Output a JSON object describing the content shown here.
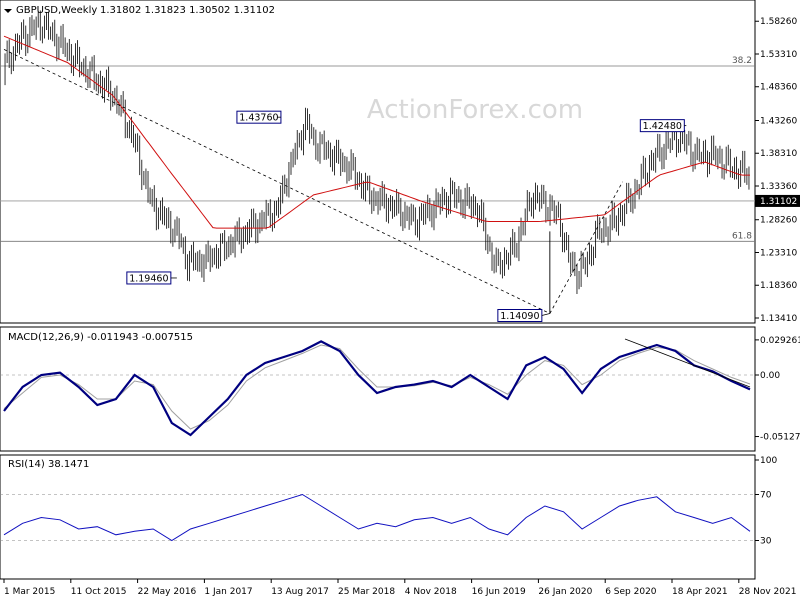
{
  "header": {
    "symbol": "GBPUSD,Weekly",
    "ohlc": "1.31802 1.31823 1.30502 1.31102"
  },
  "watermark": "ActionForex.com",
  "colors": {
    "candle": "#000000",
    "ma": "#d01010",
    "macd": "#000080",
    "signal": "#a0a0a0",
    "rsi": "#1010c0",
    "grid": "#888888",
    "watermark": "#d8d8d8"
  },
  "chart_data": [
    {
      "type": "candlestick",
      "title": "GBPUSD,Weekly 1.31802 1.31823 1.30502 1.31102",
      "y_ticks": [
        "1.58260",
        "1.53310",
        "1.48360",
        "1.43260",
        "1.38310",
        "1.33360",
        "1.28260",
        "1.23310",
        "1.18360",
        "1.13410"
      ],
      "y_tick_values": [
        1.5826,
        1.5331,
        1.4836,
        1.4326,
        1.3831,
        1.3336,
        1.2826,
        1.2331,
        1.1836,
        1.1341
      ],
      "ylim": [
        1.1341,
        1.6026
      ],
      "x_tick_labels": [
        "1 Mar 2015",
        "11 Oct 2015",
        "22 May 2016",
        "1 Jan 2017",
        "13 Aug 2017",
        "25 Mar 2018",
        "4 Nov 2018",
        "16 Jun 2019",
        "26 Jan 2020",
        "6 Sep 2020",
        "18 Apr 2021",
        "28 Nov 2021"
      ],
      "last_price": "1.31102",
      "annotations": [
        {
          "label": "1.43760",
          "x": "Sep 2017",
          "y": 1.4376
        },
        {
          "label": "1.19460",
          "x": "Oct 2016",
          "y": 1.1946
        },
        {
          "label": "1.14090",
          "x": "Mar 2020",
          "y": 1.1409
        },
        {
          "label": "1.42480",
          "x": "Jun 2021",
          "y": 1.4248
        }
      ],
      "fibonacci": [
        {
          "label": "38.2",
          "y": 1.515
        },
        {
          "label": "61.8",
          "y": 1.25
        }
      ],
      "trendlines": [
        {
          "style": "dashed",
          "from": {
            "x": "Mar 2015",
            "y": 1.54
          },
          "to": {
            "x": "Mar 2020",
            "y": 1.1409
          }
        },
        {
          "style": "dashed",
          "from": {
            "x": "Mar 2020",
            "y": 1.1409
          },
          "to": {
            "x": "Nov 2020",
            "y": 1.34
          }
        }
      ],
      "ma_series": [
        {
          "x": "Mar 2015",
          "y": 1.56
        },
        {
          "x": "Oct 2015",
          "y": 1.52
        },
        {
          "x": "Mar 2016",
          "y": 1.47
        },
        {
          "x": "Sep 2016",
          "y": 1.36
        },
        {
          "x": "Feb 2017",
          "y": 1.27
        },
        {
          "x": "Aug 2017",
          "y": 1.27
        },
        {
          "x": "Jan 2018",
          "y": 1.32
        },
        {
          "x": "Jul 2018",
          "y": 1.34
        },
        {
          "x": "Jan 2019",
          "y": 1.31
        },
        {
          "x": "Aug 2019",
          "y": 1.28
        },
        {
          "x": "Feb 2020",
          "y": 1.28
        },
        {
          "x": "Sep 2020",
          "y": 1.29
        },
        {
          "x": "Mar 2021",
          "y": 1.35
        },
        {
          "x": "Aug 2021",
          "y": 1.37
        },
        {
          "x": "Dec 2021",
          "y": 1.35
        }
      ]
    },
    {
      "type": "line",
      "title": "MACD(12,26,9) -0.011943 -0.007515",
      "y_ticks": [
        "0.029261",
        "0.00",
        "-0.051279"
      ],
      "y_tick_values": [
        0.029261,
        0.0,
        -0.051279
      ],
      "ylim": [
        -0.06,
        0.035
      ],
      "series": [
        {
          "name": "MACD",
          "values": [
            -0.03,
            -0.01,
            0.0,
            0.002,
            -0.01,
            -0.025,
            -0.02,
            0.0,
            -0.01,
            -0.04,
            -0.05,
            -0.035,
            -0.02,
            0.0,
            0.01,
            0.015,
            0.02,
            0.028,
            0.02,
            0.0,
            -0.015,
            -0.01,
            -0.008,
            -0.005,
            -0.01,
            0.0,
            -0.01,
            -0.02,
            0.008,
            0.015,
            0.005,
            -0.015,
            0.005,
            0.015,
            0.02,
            0.025,
            0.02,
            0.008,
            0.003,
            -0.005,
            -0.012
          ]
        },
        {
          "name": "Signal",
          "values": [
            -0.028,
            -0.015,
            -0.002,
            0.0,
            -0.008,
            -0.02,
            -0.02,
            -0.005,
            -0.008,
            -0.03,
            -0.045,
            -0.038,
            -0.025,
            -0.005,
            0.006,
            0.012,
            0.018,
            0.025,
            0.022,
            0.005,
            -0.01,
            -0.01,
            -0.009,
            -0.006,
            -0.009,
            -0.002,
            -0.008,
            -0.016,
            0.0,
            0.012,
            0.008,
            -0.008,
            0.0,
            0.012,
            0.018,
            0.023,
            0.021,
            0.012,
            0.005,
            -0.002,
            -0.0075
          ]
        }
      ]
    },
    {
      "type": "line",
      "title": "RSI(14) 38.1471",
      "y_ticks": [
        "100",
        "70",
        "30"
      ],
      "y_tick_values": [
        100,
        70,
        30
      ],
      "ylim": [
        0,
        100
      ],
      "reference_lines": [
        70,
        30
      ],
      "series": [
        {
          "name": "RSI",
          "values": [
            35,
            45,
            50,
            48,
            40,
            42,
            35,
            38,
            40,
            30,
            40,
            45,
            50,
            55,
            60,
            65,
            70,
            60,
            50,
            40,
            45,
            42,
            48,
            50,
            45,
            50,
            40,
            35,
            50,
            60,
            55,
            40,
            50,
            60,
            65,
            68,
            55,
            50,
            45,
            50,
            38
          ]
        }
      ]
    }
  ]
}
